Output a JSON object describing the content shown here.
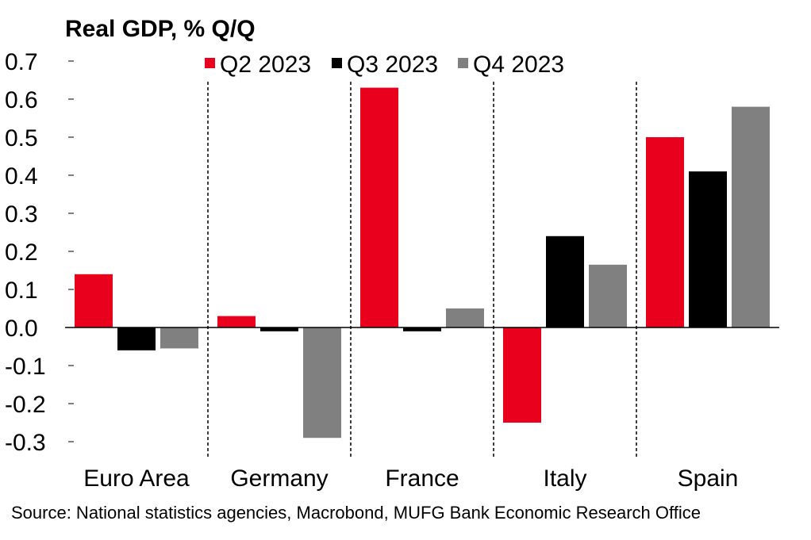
{
  "chart_data": {
    "type": "bar",
    "title": "Real GDP, % Q/Q",
    "categories": [
      "Euro Area",
      "Germany",
      "France",
      "Italy",
      "Spain"
    ],
    "series": [
      {
        "name": "Q2 2023",
        "color": "#e8001c",
        "values": [
          0.14,
          0.03,
          0.63,
          -0.25,
          0.5
        ]
      },
      {
        "name": "Q3 2023",
        "color": "#000000",
        "values": [
          -0.06,
          -0.01,
          -0.01,
          0.24,
          0.41
        ]
      },
      {
        "name": "Q4 2023",
        "color": "#808080",
        "values": [
          -0.055,
          -0.29,
          0.05,
          0.165,
          0.58
        ]
      }
    ],
    "y_ticks": [
      "0.7",
      "0.6",
      "0.5",
      "0.4",
      "0.3",
      "0.2",
      "0.1",
      "0.0",
      "-0.1",
      "-0.2",
      "-0.3"
    ],
    "ylim": [
      -0.3,
      0.7
    ],
    "grid": false,
    "legend_position": "top"
  },
  "source": "Source: National statistics agencies, Macrobond, MUFG Bank Economic Research Office"
}
